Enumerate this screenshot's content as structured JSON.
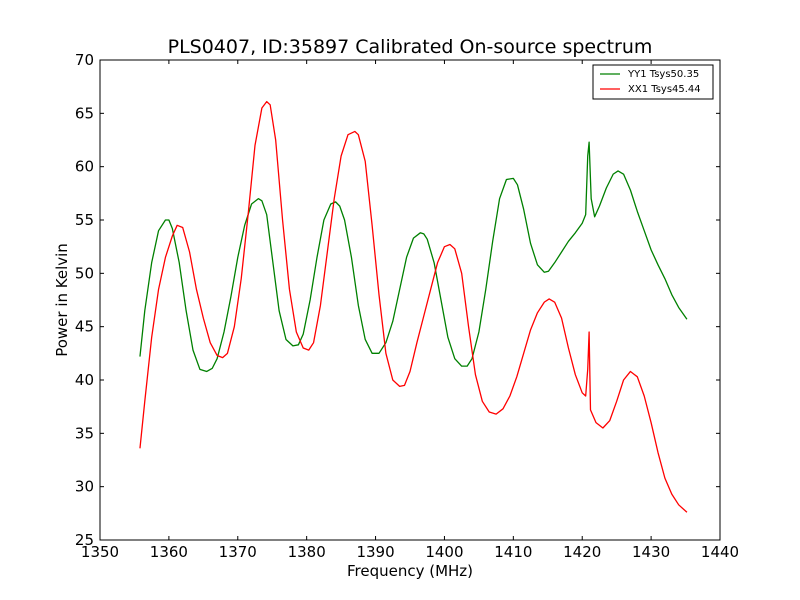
{
  "chart_data": {
    "type": "line",
    "title": "PLS0407, ID:35897 Calibrated On-source spectrum",
    "xlabel": "Frequency (MHz)",
    "ylabel": "Power in Kelvin",
    "xlim": [
      1350,
      1440
    ],
    "ylim": [
      25,
      70
    ],
    "xticks": [
      "1350",
      "1360",
      "1370",
      "1380",
      "1390",
      "1400",
      "1410",
      "1420",
      "1430",
      "1440"
    ],
    "yticks": [
      "25",
      "30",
      "35",
      "40",
      "45",
      "50",
      "55",
      "60",
      "65",
      "70"
    ],
    "grid": false,
    "legend_position": "top-right",
    "series": [
      {
        "name": "YY1 Tsys50.35",
        "color": "#008000",
        "x": [
          1355.8,
          1356.5,
          1357.5,
          1358.5,
          1359.5,
          1360.0,
          1360.5,
          1361.5,
          1362.5,
          1363.5,
          1364.5,
          1365.5,
          1366.3,
          1367.0,
          1368.0,
          1369.0,
          1370.0,
          1371.0,
          1372.0,
          1373.0,
          1373.5,
          1374.2,
          1375.0,
          1376.0,
          1377.0,
          1378.0,
          1378.8,
          1379.5,
          1380.5,
          1381.5,
          1382.5,
          1383.5,
          1384.2,
          1384.8,
          1385.5,
          1386.5,
          1387.5,
          1388.5,
          1389.5,
          1390.5,
          1391.5,
          1392.5,
          1393.5,
          1394.5,
          1395.5,
          1396.5,
          1397.0,
          1397.5,
          1398.5,
          1399.5,
          1400.5,
          1401.5,
          1402.5,
          1403.3,
          1404.0,
          1405.0,
          1406.0,
          1407.0,
          1408.0,
          1409.0,
          1410.0,
          1410.6,
          1411.5,
          1412.5,
          1413.5,
          1414.5,
          1415.1,
          1416.0,
          1417.0,
          1418.0,
          1419.0,
          1420.0,
          1420.5,
          1420.8,
          1421.0,
          1421.3,
          1421.8,
          1422.5,
          1423.5,
          1424.5,
          1425.2,
          1426.0,
          1427.0,
          1428.0,
          1429.0,
          1430.0,
          1431.0,
          1432.0,
          1433.0,
          1434.0,
          1435.2
        ],
        "values": [
          42.2,
          46.5,
          51.0,
          54.0,
          55.0,
          55.0,
          54.2,
          51.0,
          46.5,
          42.8,
          41.0,
          40.8,
          41.1,
          42.0,
          44.5,
          47.8,
          51.5,
          54.5,
          56.5,
          57.0,
          56.8,
          55.5,
          51.5,
          46.5,
          43.8,
          43.2,
          43.3,
          44.3,
          47.5,
          51.5,
          55.0,
          56.5,
          56.7,
          56.3,
          55.0,
          51.5,
          47.0,
          43.8,
          42.5,
          42.5,
          43.5,
          45.5,
          48.5,
          51.5,
          53.3,
          53.8,
          53.7,
          53.2,
          51.0,
          47.5,
          44.0,
          42.0,
          41.3,
          41.3,
          42.0,
          44.5,
          48.5,
          53.0,
          57.0,
          58.8,
          58.9,
          58.3,
          56.0,
          52.8,
          50.8,
          50.1,
          50.2,
          51.0,
          52.0,
          53.0,
          53.8,
          54.7,
          55.5,
          61.0,
          62.3,
          57.0,
          55.3,
          56.3,
          58.0,
          59.3,
          59.6,
          59.3,
          57.8,
          55.8,
          54.0,
          52.2,
          50.8,
          49.5,
          48.0,
          46.8,
          45.7
        ]
      },
      {
        "name": "XX1 Tsys45.44",
        "color": "#ff0000",
        "x": [
          1355.8,
          1356.5,
          1357.5,
          1358.5,
          1359.5,
          1360.5,
          1361.2,
          1362.0,
          1363.0,
          1364.0,
          1365.0,
          1366.0,
          1367.0,
          1367.8,
          1368.5,
          1369.5,
          1370.5,
          1371.5,
          1372.5,
          1373.5,
          1374.2,
          1374.7,
          1375.5,
          1376.5,
          1377.5,
          1378.5,
          1379.5,
          1380.3,
          1381.0,
          1382.0,
          1383.0,
          1384.0,
          1385.0,
          1386.0,
          1387.0,
          1387.5,
          1388.5,
          1389.5,
          1390.5,
          1391.5,
          1392.5,
          1393.5,
          1394.2,
          1395.0,
          1396.0,
          1397.0,
          1398.0,
          1399.0,
          1400.0,
          1400.8,
          1401.5,
          1402.5,
          1403.5,
          1404.5,
          1405.5,
          1406.5,
          1407.5,
          1408.5,
          1409.5,
          1410.5,
          1411.5,
          1412.5,
          1413.5,
          1414.5,
          1415.2,
          1416.0,
          1417.0,
          1418.0,
          1419.0,
          1420.0,
          1420.5,
          1420.8,
          1421.0,
          1421.2,
          1422.0,
          1423.0,
          1424.0,
          1425.0,
          1426.0,
          1427.0,
          1428.0,
          1429.0,
          1430.0,
          1431.0,
          1432.0,
          1433.0,
          1434.0,
          1435.2
        ],
        "values": [
          33.6,
          38.0,
          44.0,
          48.5,
          51.5,
          53.5,
          54.5,
          54.3,
          52.0,
          48.5,
          45.8,
          43.5,
          42.3,
          42.1,
          42.5,
          45.0,
          49.5,
          55.5,
          62.0,
          65.5,
          66.1,
          65.8,
          62.5,
          55.0,
          48.5,
          44.5,
          43.0,
          42.8,
          43.5,
          47.0,
          52.0,
          57.0,
          61.0,
          63.0,
          63.3,
          63.0,
          60.5,
          54.5,
          48.0,
          42.5,
          40.0,
          39.4,
          39.5,
          40.8,
          43.5,
          46.0,
          48.5,
          51.0,
          52.5,
          52.7,
          52.3,
          50.0,
          45.0,
          40.5,
          38.0,
          37.0,
          36.8,
          37.3,
          38.5,
          40.3,
          42.5,
          44.7,
          46.3,
          47.3,
          47.6,
          47.3,
          45.8,
          43.0,
          40.5,
          38.8,
          38.5,
          41.0,
          44.5,
          37.2,
          36.0,
          35.5,
          36.2,
          38.0,
          40.0,
          40.8,
          40.3,
          38.5,
          36.0,
          33.2,
          30.8,
          29.3,
          28.3,
          27.6
        ]
      }
    ]
  }
}
